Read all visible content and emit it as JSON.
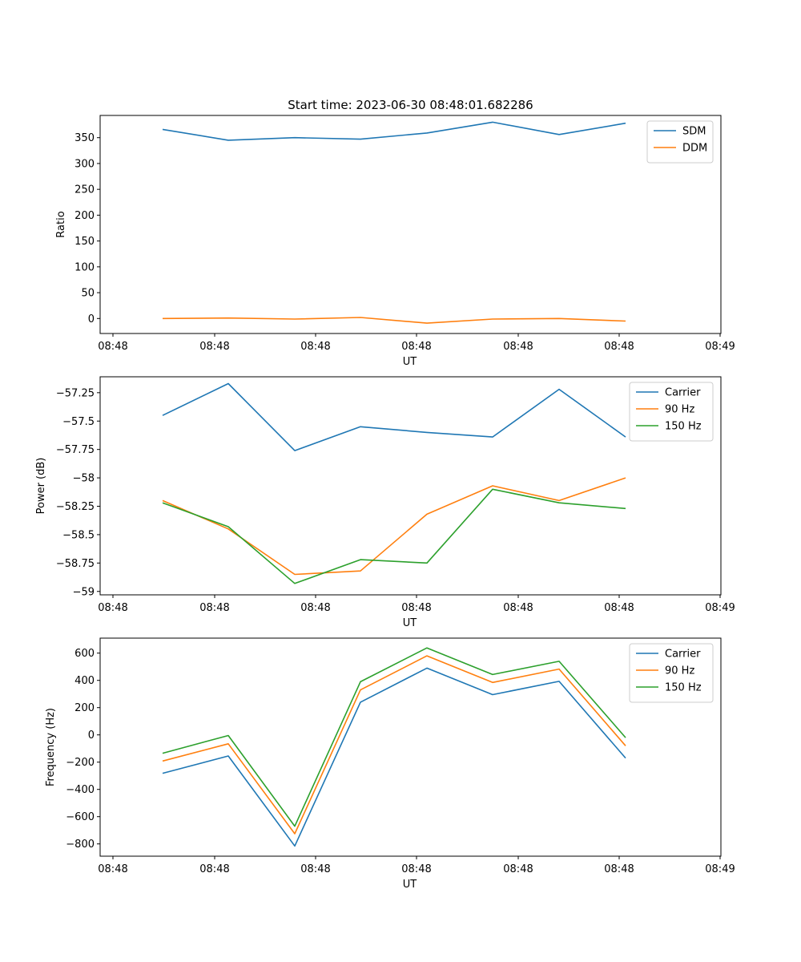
{
  "figure": {
    "title": "Start time: 2023-06-30 08:48:01.682286"
  },
  "chart_data": [
    {
      "type": "line",
      "title": "Start time: 2023-06-30 08:48:01.682286",
      "xlabel": "UT",
      "ylabel": "Ratio",
      "x_tick_labels": [
        "08:48",
        "08:48",
        "08:48",
        "08:48",
        "08:48",
        "08:48",
        "08:48",
        "08:49"
      ],
      "x": [
        0.482,
        0.61,
        0.74,
        0.83,
        0.96,
        1.09,
        1.22,
        1.35
      ],
      "xlim": [
        0,
        3
      ],
      "ylim": [
        -29,
        393
      ],
      "yticks": [
        0,
        50,
        100,
        150,
        200,
        250,
        300,
        350
      ],
      "legend": "top-right",
      "grid": false,
      "series": [
        {
          "name": "SDM",
          "color": "#1f77b4",
          "values": [
            366,
            345,
            350,
            347,
            359,
            380,
            356,
            378
          ]
        },
        {
          "name": "DDM",
          "color": "#ff7f0e",
          "values": [
            0,
            1,
            -1,
            2,
            -9,
            -1,
            0,
            -5
          ]
        }
      ]
    },
    {
      "type": "line",
      "xlabel": "UT",
      "ylabel": "Power (dB)",
      "x_tick_labels": [
        "08:48",
        "08:48",
        "08:48",
        "08:48",
        "08:48",
        "08:48",
        "08:48",
        "08:49"
      ],
      "x": [
        0.482,
        0.61,
        0.74,
        0.83,
        0.96,
        1.09,
        1.22,
        1.35
      ],
      "xlim": [
        0,
        3
      ],
      "ylim": [
        -59.03,
        -57.11
      ],
      "yticks": [
        -59.0,
        -58.75,
        -58.5,
        -58.25,
        -58.0,
        -57.75,
        -57.5,
        -57.25
      ],
      "legend": "top-right",
      "grid": false,
      "series": [
        {
          "name": "Carrier",
          "color": "#1f77b4",
          "values": [
            -57.45,
            -57.17,
            -57.76,
            -57.55,
            -57.6,
            -57.64,
            -57.22,
            -57.64
          ]
        },
        {
          "name": "90 Hz",
          "color": "#ff7f0e",
          "values": [
            -58.2,
            -58.45,
            -58.85,
            -58.82,
            -58.32,
            -58.07,
            -58.2,
            -58.0
          ]
        },
        {
          "name": "150 Hz",
          "color": "#2ca02c",
          "values": [
            -58.22,
            -58.43,
            -58.93,
            -58.72,
            -58.75,
            -58.1,
            -58.22,
            -58.27
          ]
        }
      ]
    },
    {
      "type": "line",
      "xlabel": "UT",
      "ylabel": "Frequency (Hz)",
      "x_tick_labels": [
        "08:48",
        "08:48",
        "08:48",
        "08:48",
        "08:48",
        "08:48",
        "08:48",
        "08:49"
      ],
      "x": [
        0.482,
        0.61,
        0.74,
        0.83,
        0.96,
        1.09,
        1.22,
        1.35
      ],
      "xlim": [
        0,
        3
      ],
      "ylim": [
        -890,
        710
      ],
      "yticks": [
        -800,
        -600,
        -400,
        -200,
        0,
        200,
        400,
        600
      ],
      "legend": "top-right",
      "grid": false,
      "series": [
        {
          "name": "Carrier",
          "color": "#1f77b4",
          "values": [
            -282,
            -155,
            -815,
            240,
            490,
            295,
            393,
            -170
          ]
        },
        {
          "name": "90 Hz",
          "color": "#ff7f0e",
          "values": [
            -192,
            -65,
            -725,
            330,
            580,
            385,
            483,
            -80
          ]
        },
        {
          "name": "150 Hz",
          "color": "#2ca02c",
          "values": [
            -135,
            -5,
            -670,
            390,
            638,
            443,
            540,
            -20
          ]
        }
      ]
    }
  ]
}
